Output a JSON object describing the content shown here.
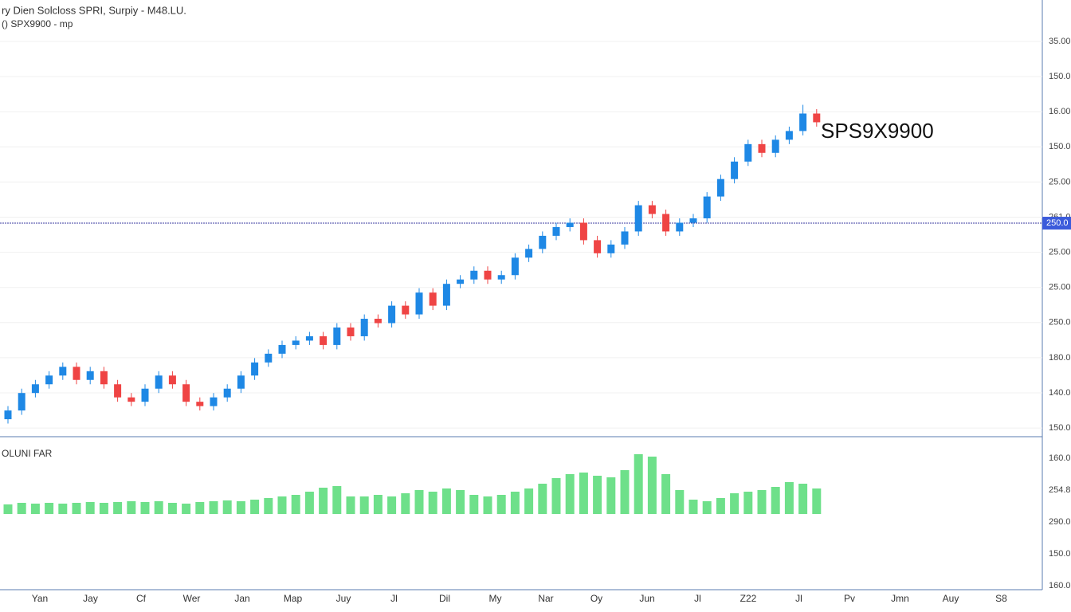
{
  "chart_data": {
    "type": "candlestick",
    "title": "ry Dien Solcloss SPRI, Surpiy - M48.LU.",
    "subtitle": "() SPX9900 - mp",
    "annotation": "SPS9X9900",
    "volume_label": "OLUNI FAR",
    "x_axis_labels": [
      "Yan",
      "Jay",
      "Cf",
      "Wer",
      "Jan",
      "Map",
      "Juy",
      "Jl",
      "Dil",
      "My",
      "Nar",
      "Oy",
      "Jun",
      "Jl",
      "Z22",
      "Jl",
      "Pv",
      "Jmn",
      "Auy",
      "S8"
    ],
    "price_axis_labels": [
      "35.00",
      "150.0",
      "16.00",
      "150.0",
      "25.00",
      "261.0",
      "25.00",
      "25.00",
      "250.0",
      "180.0",
      "140.0",
      "150.0"
    ],
    "volume_axis_labels": [
      "160.0",
      "254.8",
      "290.0",
      "150.0",
      "160.0"
    ],
    "ylim": [
      0,
      100
    ],
    "volume_ylim": [
      0,
      100
    ],
    "price_line": {
      "value": 48.9,
      "label": "250.0",
      "color": "#3a3aa0"
    },
    "up_color": "#1e88e5",
    "down_color": "#ef4444",
    "volume_color": "#6ee08a",
    "open": [
      4,
      6,
      10,
      12,
      14,
      16,
      13,
      15,
      12,
      9,
      8,
      11,
      14,
      12,
      8,
      7,
      9,
      11,
      14,
      17,
      19,
      21,
      22,
      23,
      21,
      25,
      23,
      27,
      26,
      30,
      28,
      33,
      30,
      35,
      36,
      38,
      36,
      37,
      41,
      43,
      46,
      48,
      49,
      45,
      42,
      44,
      47,
      53,
      51,
      47,
      49,
      50,
      55,
      59,
      63,
      67,
      65,
      68,
      70,
      74
    ],
    "high": [
      7,
      11,
      13,
      15,
      17,
      17,
      16,
      16,
      13,
      10,
      12,
      15,
      15,
      13,
      9,
      10,
      12,
      15,
      18,
      20,
      22,
      23,
      24,
      24,
      26,
      26,
      28,
      28,
      31,
      31,
      34,
      34,
      36,
      37,
      39,
      39,
      38,
      42,
      44,
      47,
      49,
      50,
      50,
      46,
      45,
      48,
      54,
      54,
      52,
      50,
      51,
      56,
      60,
      64,
      68,
      68,
      69,
      71,
      76,
      75
    ],
    "low": [
      3,
      5,
      9,
      11,
      13,
      12,
      12,
      11,
      8,
      7,
      7,
      10,
      11,
      7,
      6,
      6,
      8,
      10,
      13,
      16,
      18,
      20,
      21,
      20,
      20,
      22,
      22,
      25,
      25,
      27,
      27,
      29,
      29,
      34,
      35,
      35,
      35,
      36,
      40,
      42,
      45,
      47,
      44,
      41,
      41,
      43,
      46,
      50,
      46,
      46,
      48,
      49,
      54,
      58,
      62,
      64,
      64,
      67,
      69,
      71
    ],
    "close": [
      6,
      10,
      12,
      14,
      16,
      13,
      15,
      12,
      9,
      8,
      11,
      14,
      12,
      8,
      7,
      9,
      11,
      14,
      17,
      19,
      21,
      22,
      23,
      21,
      25,
      23,
      27,
      26,
      30,
      28,
      33,
      30,
      35,
      36,
      38,
      36,
      37,
      41,
      43,
      46,
      48,
      49,
      45,
      42,
      44,
      47,
      53,
      51,
      47,
      49,
      50,
      55,
      59,
      63,
      67,
      65,
      68,
      70,
      74,
      72
    ],
    "volume": [
      12,
      14,
      13,
      14,
      13,
      14,
      15,
      14,
      15,
      16,
      15,
      16,
      14,
      13,
      15,
      16,
      17,
      16,
      18,
      20,
      22,
      24,
      28,
      33,
      35,
      22,
      22,
      24,
      22,
      26,
      30,
      28,
      32,
      30,
      24,
      22,
      24,
      28,
      32,
      38,
      45,
      50,
      52,
      48,
      46,
      55,
      75,
      72,
      50,
      30,
      18,
      16,
      20,
      26,
      28,
      30,
      34,
      40,
      38,
      32
    ]
  }
}
